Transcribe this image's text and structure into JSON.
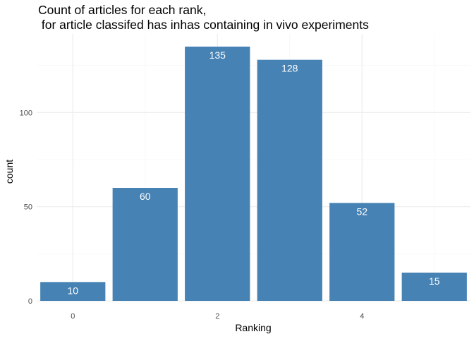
{
  "chart_data": {
    "type": "bar",
    "title_line1": "Count of articles for each rank,",
    "title_line2": " for article classifed has inhas containing in vivo experiments",
    "xlabel": "Ranking",
    "ylabel": "count",
    "x": [
      0,
      1,
      2,
      3,
      4,
      5
    ],
    "values": [
      10,
      60,
      135,
      128,
      52,
      15
    ],
    "xlim": [
      -0.5,
      5.5
    ],
    "ylim": [
      0,
      141.75
    ],
    "x_ticks": [
      0,
      2,
      4
    ],
    "y_ticks": [
      0,
      50,
      100
    ],
    "bar_color": "#4682B4",
    "label_color": "#FFFFFF",
    "grid": true,
    "theme": "minimal"
  }
}
